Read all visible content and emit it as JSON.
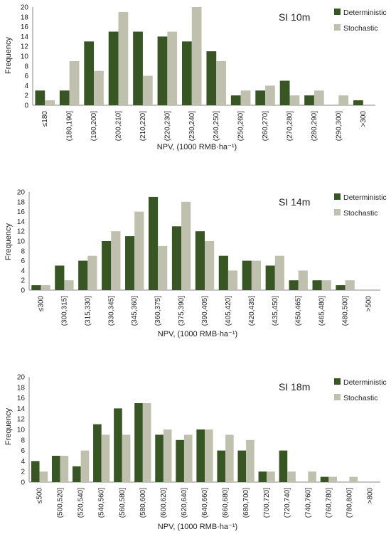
{
  "colors": {
    "deterministic": "#375623",
    "stochastic": "#c0c0ae",
    "axis": "#888888",
    "text": "#222222"
  },
  "chart_data": [
    {
      "type": "bar",
      "title": "SI 10m",
      "xlabel": "NPV, (1000 RMB·ha⁻¹)",
      "ylabel": "Frequency",
      "ylim": [
        0,
        20
      ],
      "yticks": [
        0,
        2,
        4,
        6,
        8,
        10,
        12,
        14,
        16,
        18,
        20
      ],
      "legend_position": "top-right",
      "categories": [
        "≤180",
        "(180,190]",
        "(190,200]",
        "(200,210]",
        "(210,220]",
        "(220,230]",
        "(230,240]",
        "(240,250]",
        "(250,260]",
        "(260,270]",
        "(270,280]",
        "(280,290]",
        "(290,300]",
        ">300"
      ],
      "series": [
        {
          "name": "Deterministic",
          "values": [
            3,
            3,
            13,
            15,
            15,
            14,
            13,
            11,
            2,
            3,
            5,
            2,
            0,
            1
          ]
        },
        {
          "name": "Stochastic",
          "values": [
            1,
            9,
            7,
            19,
            6,
            15,
            20,
            9,
            3,
            4,
            2,
            3,
            2,
            0
          ]
        }
      ]
    },
    {
      "type": "bar",
      "title": "SI 14m",
      "xlabel": "NPV, (1000 RMB·ha⁻¹)",
      "ylabel": "Frequency",
      "ylim": [
        0,
        20
      ],
      "yticks": [
        0,
        2,
        4,
        6,
        8,
        10,
        12,
        14,
        16,
        18,
        20
      ],
      "legend_position": "top-right",
      "categories": [
        "≤300",
        "(300,315]",
        "(315,330]",
        "(330,345]",
        "(345,360]",
        "(360,375]",
        "(375,390]",
        "(390,405]",
        "(405,420]",
        "(420,435]",
        "(435,450]",
        "(450,465]",
        "(465,480]",
        "(480,500]",
        ">500"
      ],
      "series": [
        {
          "name": "Deterministic",
          "values": [
            1,
            5,
            6,
            10,
            11,
            19,
            13,
            12,
            7,
            6,
            5,
            2,
            2,
            1,
            0
          ]
        },
        {
          "name": "Stochastic",
          "values": [
            1,
            2,
            7,
            12,
            16,
            9,
            18,
            10,
            4,
            6,
            7,
            4,
            2,
            2,
            0
          ]
        }
      ]
    },
    {
      "type": "bar",
      "title": "SI 18m",
      "xlabel": "NPV, (1000 RMB·ha⁻¹)",
      "ylabel": "Frequency",
      "ylim": [
        0,
        20
      ],
      "yticks": [
        0,
        2,
        4,
        6,
        8,
        10,
        12,
        14,
        16,
        18,
        20
      ],
      "legend_position": "top-right",
      "categories": [
        "≤500",
        "(500,520]",
        "(520,540]",
        "(540,560]",
        "(560,580]",
        "(580,600]",
        "(600,620]",
        "(620,640]",
        "(640,660]",
        "(660,680]",
        "(680,700]",
        "(700,720]",
        "(720,740]",
        "(740,760]",
        "(760,780]",
        "(780,800]",
        ">800"
      ],
      "series": [
        {
          "name": "Deterministic",
          "values": [
            4,
            5,
            3,
            11,
            14,
            15,
            9,
            8,
            10,
            6,
            6,
            2,
            6,
            0,
            1,
            0,
            0
          ]
        },
        {
          "name": "Stochastic",
          "values": [
            2,
            5,
            6,
            9,
            9,
            15,
            10,
            9,
            10,
            9,
            8,
            2,
            2,
            2,
            1,
            1,
            0
          ]
        }
      ]
    }
  ]
}
